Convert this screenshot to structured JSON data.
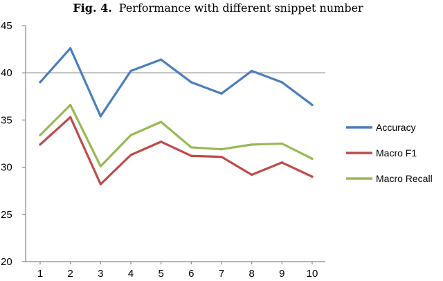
{
  "chart_data": {
    "type": "line",
    "title_prefix": "Fig. 4.",
    "title": "Performance with different snippet number",
    "xlabel": "",
    "ylabel": "",
    "x": [
      1,
      2,
      3,
      4,
      5,
      6,
      7,
      8,
      9,
      10
    ],
    "ylim": [
      20,
      45
    ],
    "yticks": [
      20,
      25,
      30,
      35,
      40,
      45
    ],
    "gridlines": [
      40
    ],
    "legend_position": "right",
    "series": [
      {
        "name": "Accuracy",
        "color": "#4a7ebb",
        "values": [
          39.0,
          42.6,
          35.4,
          40.2,
          41.4,
          39.0,
          37.8,
          40.2,
          39.0,
          36.6
        ]
      },
      {
        "name": "Macro F1",
        "color": "#be4b48",
        "values": [
          32.4,
          35.3,
          28.2,
          31.3,
          32.7,
          31.2,
          31.1,
          29.2,
          30.5,
          29.0
        ]
      },
      {
        "name": "Macro Recall",
        "color": "#98b954",
        "values": [
          33.4,
          36.6,
          30.1,
          33.4,
          34.8,
          32.1,
          31.9,
          32.4,
          32.5,
          30.9
        ]
      }
    ]
  }
}
